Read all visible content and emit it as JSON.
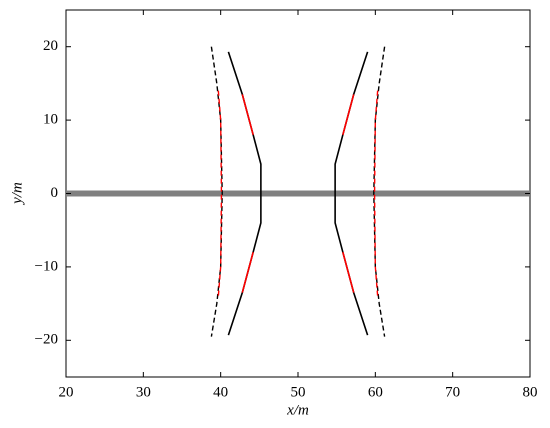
{
  "chart_data": {
    "type": "line",
    "xlabel": "x/m",
    "ylabel": "y/m",
    "xlim": [
      20,
      80
    ],
    "xticks": [
      20,
      30,
      40,
      50,
      60,
      70,
      80
    ],
    "ylim": [
      -25,
      25
    ],
    "yticks": [
      {
        "value": -20,
        "label": "−20"
      },
      {
        "value": -10,
        "label": "−10"
      },
      0,
      10,
      20
    ],
    "series": [
      {
        "color": "#808080",
        "dash": "solid",
        "width": 6,
        "x": [
          20,
          80
        ],
        "values": [
          0,
          0
        ]
      },
      {
        "color": "#000000",
        "dash": "solid",
        "width": 1.6,
        "x": [
          41,
          42.8,
          44.2,
          45.2,
          45.2,
          44.2,
          42.8,
          41
        ],
        "values": [
          19.3,
          13.5,
          8,
          4,
          -4,
          -8,
          -13.5,
          -19.3
        ]
      },
      {
        "color": "#000000",
        "dash": "solid",
        "width": 1.6,
        "x": [
          59,
          57.2,
          55.8,
          54.8,
          54.8,
          55.8,
          57.2,
          59
        ],
        "values": [
          19.3,
          13.5,
          8,
          4,
          -4,
          -8,
          -13.5,
          -19.3
        ]
      },
      {
        "color": "#000000",
        "dash": "dashed",
        "width": 1.4,
        "x": [
          38.8,
          39.5,
          40,
          40.2,
          40,
          39.5,
          38.8
        ],
        "values": [
          20,
          15,
          10,
          0,
          -10,
          -15,
          -19.5
        ]
      },
      {
        "color": "#000000",
        "dash": "dashed",
        "width": 1.4,
        "x": [
          61.2,
          60.5,
          60,
          59.8,
          60,
          60.5,
          61.2
        ],
        "values": [
          20,
          15,
          10,
          0,
          -10,
          -15,
          -19.5
        ]
      },
      {
        "color": "#ff0000",
        "dash": "solid",
        "width": 1.6,
        "x": [
          42.8,
          44.2,
          null,
          44.2,
          42.8,
          null,
          57.2,
          55.8,
          null,
          55.8,
          57.2
        ],
        "values": [
          13.5,
          8,
          null,
          -8,
          -13.5,
          null,
          13.5,
          8,
          null,
          -8,
          -13.5
        ]
      },
      {
        "color": "#ff0000",
        "dash": "dashed",
        "width": 1.4,
        "x": [
          39.7,
          40,
          40.1,
          40,
          39.7,
          null,
          60.3,
          60,
          59.9,
          60,
          60.3
        ],
        "values": [
          14,
          10,
          0,
          -10,
          -14,
          null,
          14,
          10,
          0,
          -10,
          -14
        ]
      }
    ]
  }
}
